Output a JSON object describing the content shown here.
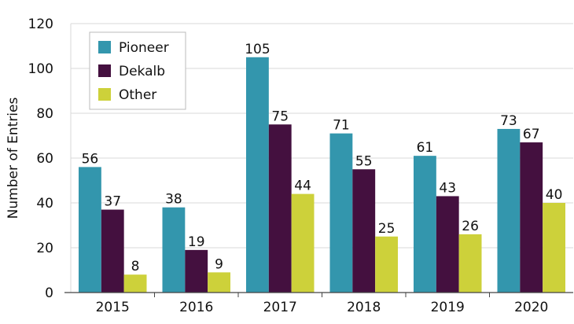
{
  "chart_data": {
    "type": "bar",
    "title": "",
    "xlabel": "",
    "ylabel": "Number of Entries",
    "ylim": [
      0,
      120
    ],
    "yticks": [
      0,
      20,
      40,
      60,
      80,
      100,
      120
    ],
    "grid": true,
    "legend_position": "top-left",
    "categories": [
      "2015",
      "2016",
      "2017",
      "2018",
      "2019",
      "2020"
    ],
    "series": [
      {
        "name": "Pioneer",
        "color": "#3396ad",
        "values": [
          56,
          38,
          105,
          71,
          61,
          73
        ]
      },
      {
        "name": "Dekalb",
        "color": "#44103f",
        "values": [
          37,
          19,
          75,
          55,
          43,
          67
        ]
      },
      {
        "name": "Other",
        "color": "#cdd13a",
        "values": [
          8,
          9,
          44,
          25,
          26,
          40
        ]
      }
    ]
  }
}
